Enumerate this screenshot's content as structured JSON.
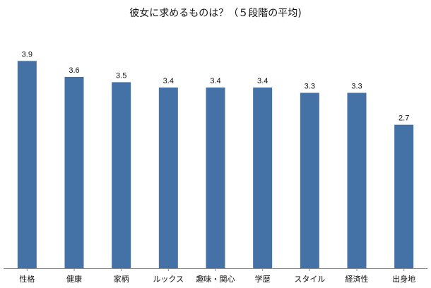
{
  "chart_data": {
    "type": "bar",
    "title": "彼女に求めるものは？（５段階の平均)",
    "xlabel": "",
    "ylabel": "",
    "categories": [
      "性格",
      "健康",
      "家柄",
      "ルックス",
      "趣味・関心",
      "学歴",
      "スタイル",
      "経済性",
      "出身地"
    ],
    "values": [
      3.9,
      3.6,
      3.5,
      3.4,
      3.4,
      3.4,
      3.3,
      3.3,
      2.7
    ],
    "value_labels": [
      "3.9",
      "3.6",
      "3.5",
      "3.4",
      "3.4",
      "3.4",
      "3.3",
      "3.3",
      "2.7"
    ],
    "ylim": [
      0,
      4.2
    ],
    "grid": false,
    "legend": "none",
    "bar_color": "#4472a6",
    "axis_color": "#888888"
  }
}
